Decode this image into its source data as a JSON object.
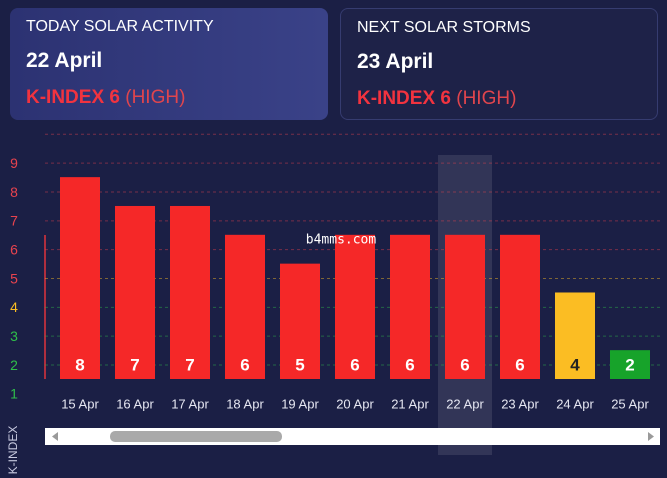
{
  "cards": [
    {
      "title": "TODAY SOLAR ACTIVITY",
      "date": "22 April",
      "kindex": "K-INDEX 6",
      "level": "(HIGH)"
    },
    {
      "title": "NEXT SOLAR STORMS",
      "date": "23 April",
      "kindex": "K-INDEX 6",
      "level": "(HIGH)"
    }
  ],
  "chart_data": {
    "type": "bar",
    "y_label": "K-INDEX",
    "watermark": "b4mms.com",
    "categories": [
      "15 Apr",
      "16 Apr",
      "17 Apr",
      "18 Apr",
      "19 Apr",
      "20 Apr",
      "21 Apr",
      "22 Apr",
      "23 Apr",
      "24 Apr",
      "25 Apr"
    ],
    "values": [
      8,
      7,
      7,
      6,
      5,
      6,
      6,
      6,
      6,
      4,
      2
    ],
    "colors": [
      "#f52828",
      "#f52828",
      "#f52828",
      "#f52828",
      "#f52828",
      "#f52828",
      "#f52828",
      "#f52828",
      "#f52828",
      "#fbbd23",
      "#17a32a"
    ],
    "ylim": [
      1,
      9.6
    ],
    "yticks": [
      1,
      2,
      3,
      4,
      5,
      6,
      7,
      8,
      9
    ],
    "ytick_colors": [
      "#2fbf4a",
      "#2fbf4a",
      "#2fbf4a",
      "#fbbd23",
      "#e8434e",
      "#e8434e",
      "#e8434e",
      "#e8434e",
      "#e8434e"
    ],
    "highlight_index": 7
  }
}
